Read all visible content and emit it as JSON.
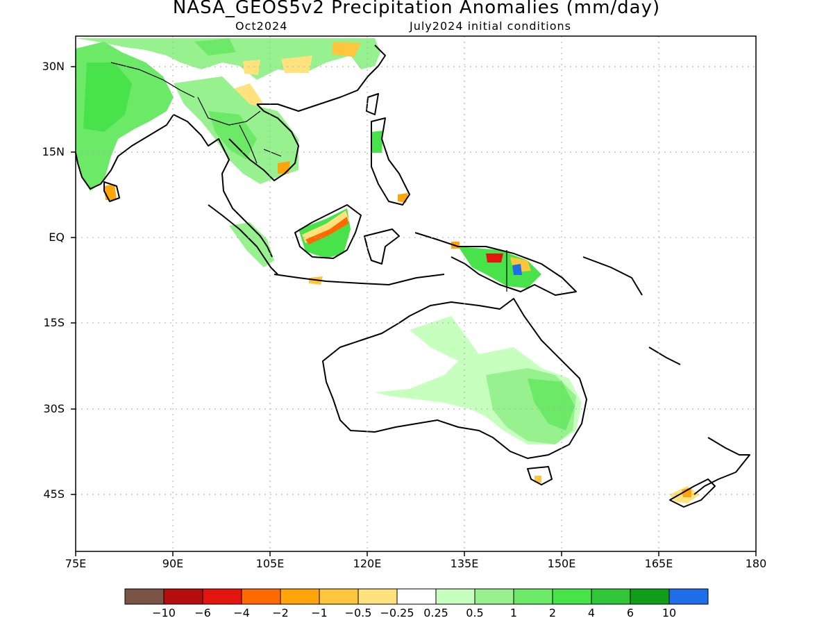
{
  "title": "NASA_GEOS5v2 Precipitation Anomalies (mm/day)",
  "subtitle_left": "Oct2024",
  "subtitle_right": "July2024 initial conditions",
  "lat_ticks": [
    "30N",
    "15N",
    "EQ",
    "15S",
    "30S",
    "45S"
  ],
  "lon_ticks": [
    "75E",
    "90E",
    "105E",
    "120E",
    "135E",
    "150E",
    "165E",
    "180"
  ],
  "colorbar": {
    "colors": [
      "#7a5446",
      "#b50c0c",
      "#e4150f",
      "#ff6a00",
      "#ffa50a",
      "#ffc53d",
      "#ffe27e",
      "#ffffff",
      "#c7ffbf",
      "#98f18f",
      "#6ce967",
      "#48e34a",
      "#31c638",
      "#109e1a",
      "#1f6ee9"
    ],
    "labels": [
      "-10",
      "-6",
      "-4",
      "-2",
      "-1",
      "-0.5",
      "-0.25",
      "0.25",
      "0.5",
      "1",
      "2",
      "4",
      "6",
      "10"
    ]
  },
  "chart_data": {
    "type": "heatmap",
    "title": "NASA_GEOS5v2 Precipitation Anomalies (mm/day)",
    "xlim": [
      75,
      180
    ],
    "ylim": [
      -55,
      35
    ],
    "units": "mm/day",
    "levels": [
      -10,
      -6,
      -4,
      -2,
      -1,
      -0.5,
      -0.25,
      0.25,
      0.5,
      1,
      2,
      4,
      6,
      10
    ],
    "notable_regions": [
      {
        "region": "India",
        "anomaly_range": [
          0.5,
          2
        ]
      },
      {
        "region": "Indochina",
        "anomaly_range": [
          0.5,
          2
        ]
      },
      {
        "region": "Southern China",
        "anomaly_range": [
          -1,
          1
        ]
      },
      {
        "region": "Borneo",
        "anomaly_range": [
          -4,
          2
        ]
      },
      {
        "region": "New Guinea",
        "anomaly_range": [
          -6,
          10
        ]
      },
      {
        "region": "Eastern Australia",
        "anomaly_range": [
          0.25,
          2
        ]
      },
      {
        "region": "New Zealand South Island",
        "anomaly_range": [
          -1,
          0.5
        ]
      }
    ]
  }
}
